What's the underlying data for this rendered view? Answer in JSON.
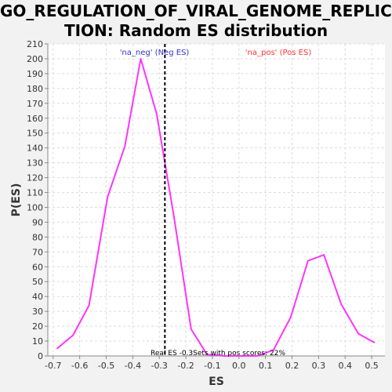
{
  "title_lines": [
    "GO_REGULATION_OF_VIRAL_GENOME_REPLICA",
    "TION: Random ES distribution"
  ],
  "chart_data": {
    "type": "line",
    "title": "GO_REGULATION_OF_VIRAL_GENOME_REPLICATION: Random ES distribution",
    "xlabel": "ES",
    "ylabel": "P(ES)",
    "xlim": [
      -0.72,
      0.55
    ],
    "ylim": [
      0,
      210
    ],
    "x_ticks": [
      -0.7,
      -0.6,
      -0.5,
      -0.4,
      -0.3,
      -0.2,
      -0.1,
      0.0,
      0.1,
      0.2,
      0.3,
      0.4,
      0.5
    ],
    "x_tick_labels": [
      "-0.7",
      "-0.6",
      "-0.5",
      "-0.4",
      "-0.3",
      "-0.2",
      "-0.1",
      "0.0",
      "0.1",
      "0.2",
      "0.3",
      "0.4",
      "0.5"
    ],
    "y_ticks": [
      0,
      10,
      20,
      30,
      40,
      50,
      60,
      70,
      80,
      90,
      100,
      110,
      120,
      130,
      140,
      150,
      160,
      170,
      180,
      190,
      200,
      210
    ],
    "grid": true,
    "series": [
      {
        "color": "#ff33ff",
        "x": [
          -0.685,
          -0.625,
          -0.565,
          -0.495,
          -0.43,
          -0.37,
          -0.31,
          -0.245,
          -0.18,
          -0.12,
          -0.055,
          0.005,
          0.07,
          0.13,
          0.195,
          0.26,
          0.32,
          0.385,
          0.45,
          0.51
        ],
        "y": [
          5,
          14,
          34,
          107,
          141,
          200,
          163,
          94,
          18,
          1,
          0,
          0,
          0,
          4,
          26,
          64,
          68,
          35,
          15,
          9
        ]
      }
    ],
    "marker_line": {
      "x": -0.279,
      "color": "#000000",
      "style": "dashed"
    },
    "annotations": {
      "neg": {
        "text": "'na_neg' (Neg ES)",
        "color": "#3333cc"
      },
      "pos": {
        "text": "'na_pos' (Pos ES)",
        "color": "#ff3333"
      },
      "bottom": {
        "text": "Real ES -0.3Sets with pos scores: 22%",
        "color": "#000000"
      }
    }
  }
}
